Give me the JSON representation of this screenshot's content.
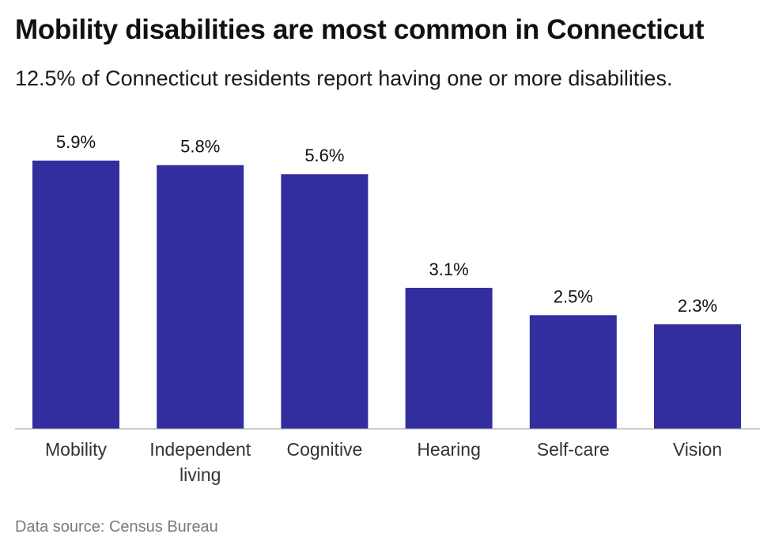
{
  "header": {
    "title": "Mobility disabilities are most common in Connecticut",
    "subtitle": "12.5% of Connecticut residents report having one or more disabilities."
  },
  "footer": {
    "source": "Data source: Census Bureau"
  },
  "colors": {
    "bar": "#322ea0",
    "axis": "#9a9a9a"
  },
  "chart_data": {
    "type": "bar",
    "categories": [
      "Mobility",
      "Independent living",
      "Cognitive",
      "Hearing",
      "Self-care",
      "Vision"
    ],
    "category_lines": [
      [
        "Mobility"
      ],
      [
        "Independent",
        "living"
      ],
      [
        "Cognitive"
      ],
      [
        "Hearing"
      ],
      [
        "Self-care"
      ],
      [
        "Vision"
      ]
    ],
    "values": [
      5.9,
      5.8,
      5.6,
      3.1,
      2.5,
      2.3
    ],
    "value_labels": [
      "5.9%",
      "5.8%",
      "5.6%",
      "3.1%",
      "2.5%",
      "2.3%"
    ],
    "ylim": [
      0,
      5.9
    ],
    "grid": false,
    "legend": "none"
  }
}
